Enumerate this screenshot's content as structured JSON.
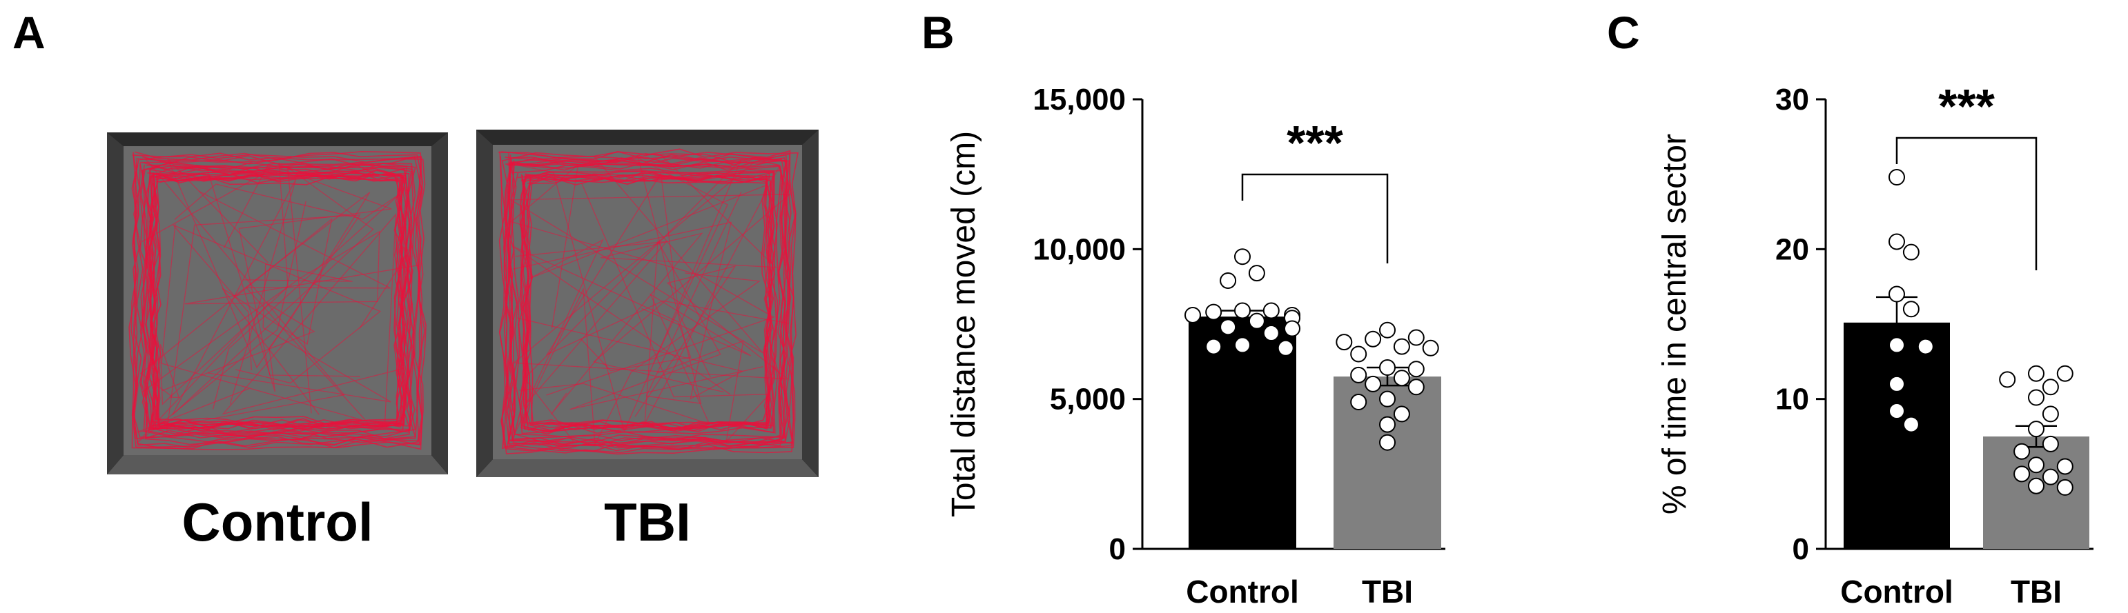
{
  "panel_letters": {
    "a": "A",
    "b": "B",
    "c": "C"
  },
  "panel_a": {
    "arenas": [
      {
        "label": "Control"
      },
      {
        "label": "TBI"
      }
    ],
    "track_color": "#e8123c"
  },
  "chart_data": [
    {
      "panel": "B",
      "type": "bar",
      "ylabel": "Total distance moved (cm)",
      "ylim": [
        0,
        15000
      ],
      "yticks": [
        0,
        5000,
        10000,
        15000
      ],
      "ytick_labels": [
        "0",
        "5,000",
        "10,000",
        "15,000"
      ],
      "categories": [
        "Control",
        "TBI"
      ],
      "values": [
        7750,
        5750
      ],
      "sem": [
        200,
        300
      ],
      "bar_colors": [
        "#000000",
        "#808080"
      ],
      "points": [
        [
          9750,
          9200,
          8950,
          7950,
          7950,
          7900,
          7800,
          7800,
          7700,
          7600,
          7400,
          7350,
          7200,
          6800,
          6750,
          6700
        ],
        [
          7300,
          7050,
          7000,
          6900,
          6750,
          6700,
          6500,
          6050,
          6000,
          5800,
          5700,
          5500,
          5400,
          5000,
          4900,
          4500,
          4150,
          3550
        ]
      ],
      "significance": "***"
    },
    {
      "panel": "C",
      "type": "bar",
      "ylabel": "% of time in central sector",
      "ylim": [
        0,
        30
      ],
      "yticks": [
        0,
        10,
        20,
        30
      ],
      "ytick_labels": [
        "0",
        "10",
        "20",
        "30"
      ],
      "categories": [
        "Control",
        "TBI"
      ],
      "values": [
        15.1,
        7.5
      ],
      "sem": [
        1.7,
        0.7
      ],
      "bar_colors": [
        "#000000",
        "#808080"
      ],
      "points": [
        [
          24.8,
          20.5,
          19.8,
          17.0,
          16.0,
          13.6,
          13.5,
          11.0,
          9.2,
          8.3
        ],
        [
          11.7,
          11.7,
          11.3,
          10.8,
          10.1,
          9.0,
          8.0,
          7.0,
          6.5,
          5.6,
          5.5,
          5.0,
          4.8,
          4.2,
          4.1
        ]
      ],
      "significance": "***"
    }
  ]
}
